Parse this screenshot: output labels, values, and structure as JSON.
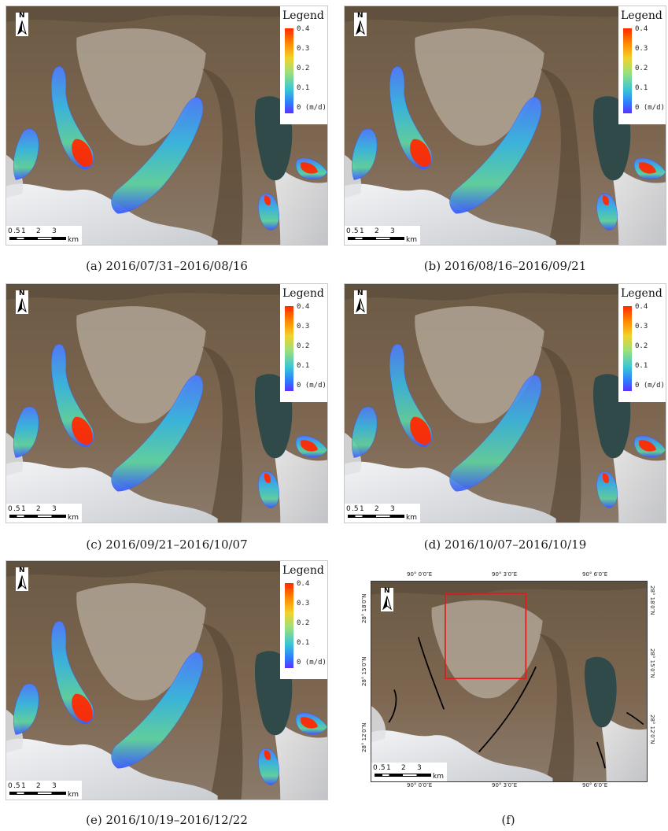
{
  "panels": [
    {
      "id": "a",
      "caption": "(a) 2016/07/31–2016/08/16",
      "legend": {
        "title": "Legend",
        "ticks": [
          "0.4",
          "0.3",
          "0.2",
          "0.1",
          "0 (m/d)"
        ]
      },
      "north_label": "N",
      "scalebar": {
        "labels": [
          "0",
          ".5",
          "1",
          "2",
          "3"
        ],
        "unit": "km"
      }
    },
    {
      "id": "b",
      "caption": "(b) 2016/08/16–2016/09/21",
      "legend": {
        "title": "Legend",
        "ticks": [
          "0.4",
          "0.3",
          "0.2",
          "0.1",
          "0 (m/d)"
        ]
      },
      "north_label": "N",
      "scalebar": {
        "labels": [
          "0",
          ".5",
          "1",
          "2",
          "3"
        ],
        "unit": "km"
      }
    },
    {
      "id": "c",
      "caption": "(c) 2016/09/21–2016/10/07",
      "legend": {
        "title": "Legend",
        "ticks": [
          "0.4",
          "0.3",
          "0.2",
          "0.1",
          "0 (m/d)"
        ]
      },
      "north_label": "N",
      "scalebar": {
        "labels": [
          "0",
          ".5",
          "1",
          "2",
          "3"
        ],
        "unit": "km"
      }
    },
    {
      "id": "d",
      "caption": "(d) 2016/10/07–2016/10/19",
      "legend": {
        "title": "Legend",
        "ticks": [
          "0.4",
          "0.3",
          "0.2",
          "0.1",
          "0 (m/d)"
        ]
      },
      "north_label": "N",
      "scalebar": {
        "labels": [
          "0",
          ".5",
          "1",
          "2",
          "3"
        ],
        "unit": "km"
      }
    },
    {
      "id": "e",
      "caption": "(e) 2016/10/19–2016/12/22",
      "legend": {
        "title": "Legend",
        "ticks": [
          "0.4",
          "0.3",
          "0.2",
          "0.1",
          "0 (m/d)"
        ]
      },
      "north_label": "N",
      "scalebar": {
        "labels": [
          "0",
          ".5",
          "1",
          "2",
          "3"
        ],
        "unit": "km"
      }
    },
    {
      "id": "f",
      "caption": "(f)",
      "north_label": "N",
      "scalebar": {
        "labels": [
          "0",
          ".5",
          "1",
          "2",
          "3"
        ],
        "unit": "km"
      },
      "lon_labels": [
        "90° 0′0″E",
        "90° 3′0″E",
        "90° 6′0″E"
      ],
      "lat_labels": [
        "28° 18′0″N",
        "28° 15′0″N",
        "28° 12′0″N"
      ]
    }
  ],
  "colors": {
    "velocity_low": "#3a5bff",
    "velocity_mid": "#5fd3a0",
    "velocity_high": "#ff2a00",
    "lake": "#2f4a48",
    "terrain": "#7a6148",
    "snow": "#e9ecef",
    "study_box": "#e01b1b"
  }
}
